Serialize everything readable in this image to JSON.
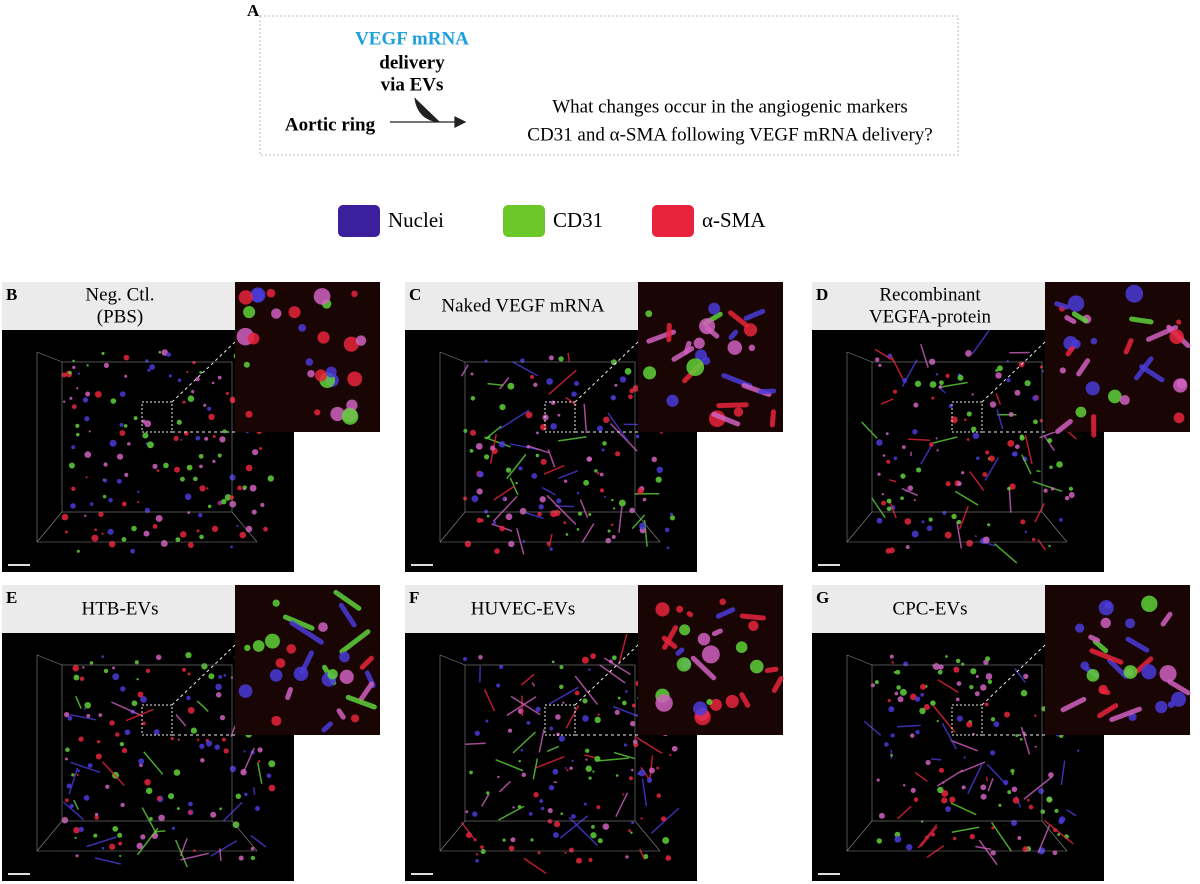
{
  "panel_a": {
    "letter": "A",
    "delivery_lines": [
      "VEGF mRNA",
      "delivery",
      "via EVs"
    ],
    "source": "Aortic ring",
    "question_lines": [
      "What changes occur in the angiogenic markers",
      "CD31 and α-SMA following VEGF mRNA delivery?"
    ]
  },
  "legend": [
    {
      "label": "Nuclei",
      "color": "#3b1f9c"
    },
    {
      "label": "CD31",
      "color": "#6cc829"
    },
    {
      "label": "α-SMA",
      "color": "#e8243c"
    }
  ],
  "panels": [
    {
      "letter": "B",
      "title_lines": [
        "Neg. Ctl.",
        "(PBS)"
      ]
    },
    {
      "letter": "C",
      "title_lines": [
        "Naked VEGF mRNA"
      ]
    },
    {
      "letter": "D",
      "title_lines": [
        "Recombinant",
        "VEGFA-protein"
      ]
    },
    {
      "letter": "E",
      "title_lines": [
        "HTB-EVs"
      ]
    },
    {
      "letter": "F",
      "title_lines": [
        "HUVEC-EVs"
      ]
    },
    {
      "letter": "G",
      "title_lines": [
        "CPC-EVs"
      ]
    }
  ]
}
